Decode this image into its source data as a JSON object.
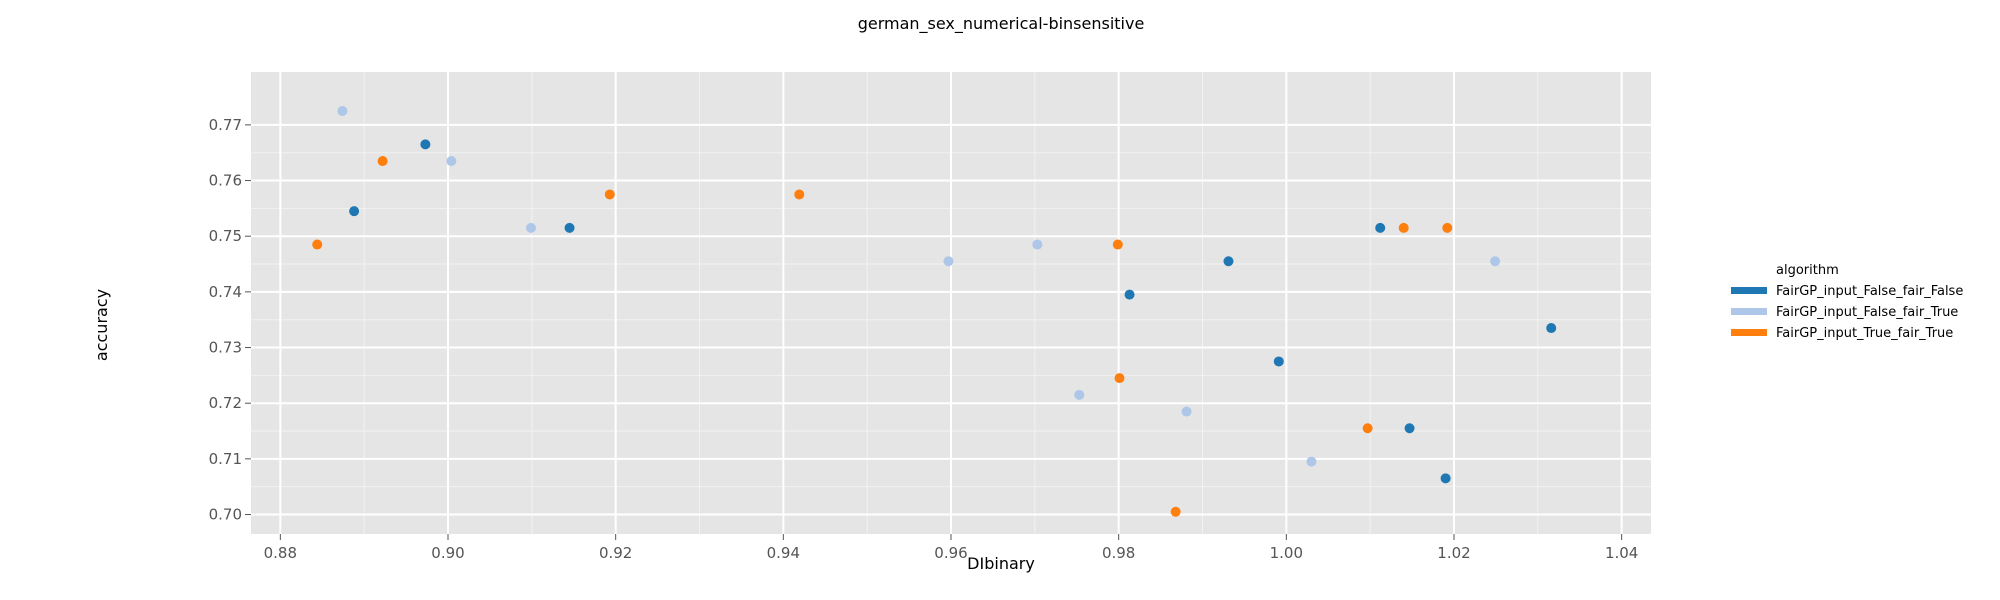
{
  "chart_data": {
    "type": "scatter",
    "title": "german_sex_numerical-binsensitive",
    "xlabel": "DIbinary",
    "ylabel": "accuracy",
    "xlim": [
      0.8765,
      1.0435
    ],
    "ylim": [
      0.6965,
      0.7795
    ],
    "x_ticks": [
      "0.88",
      "0.90",
      "0.92",
      "0.94",
      "0.96",
      "0.98",
      "1.00",
      "1.02",
      "1.04"
    ],
    "y_ticks": [
      "0.70",
      "0.71",
      "0.72",
      "0.73",
      "0.74",
      "0.75",
      "0.76",
      "0.77"
    ],
    "grid": true,
    "legend": {
      "title": "algorithm",
      "position": "right"
    },
    "series": [
      {
        "name": "FairGP_input_False_fair_False",
        "color": "#1f77b4",
        "points": [
          {
            "x": 0.8888,
            "y": 0.7545
          },
          {
            "x": 0.8973,
            "y": 0.7665
          },
          {
            "x": 0.9145,
            "y": 0.7515
          },
          {
            "x": 0.9813,
            "y": 0.7395
          },
          {
            "x": 0.9931,
            "y": 0.7455
          },
          {
            "x": 0.9991,
            "y": 0.7275
          },
          {
            "x": 1.0112,
            "y": 0.7515
          },
          {
            "x": 1.0147,
            "y": 0.7155
          },
          {
            "x": 1.019,
            "y": 0.7065
          },
          {
            "x": 1.0316,
            "y": 0.7335
          }
        ]
      },
      {
        "name": "FairGP_input_False_fair_True",
        "color": "#aec7e8",
        "points": [
          {
            "x": 0.8874,
            "y": 0.7725
          },
          {
            "x": 0.9004,
            "y": 0.7635
          },
          {
            "x": 0.9099,
            "y": 0.7515
          },
          {
            "x": 0.9597,
            "y": 0.7455
          },
          {
            "x": 0.9703,
            "y": 0.7485
          },
          {
            "x": 0.9753,
            "y": 0.7215
          },
          {
            "x": 0.9881,
            "y": 0.7185
          },
          {
            "x": 1.003,
            "y": 0.7095
          },
          {
            "x": 1.0249,
            "y": 0.7455
          }
        ]
      },
      {
        "name": "FairGP_input_True_fair_True",
        "color": "#ff7f0e",
        "points": [
          {
            "x": 0.8844,
            "y": 0.7485
          },
          {
            "x": 0.8922,
            "y": 0.7635
          },
          {
            "x": 0.9193,
            "y": 0.7575
          },
          {
            "x": 0.9419,
            "y": 0.7575
          },
          {
            "x": 0.9799,
            "y": 0.7485
          },
          {
            "x": 0.9801,
            "y": 0.7245
          },
          {
            "x": 0.9868,
            "y": 0.7005
          },
          {
            "x": 1.0097,
            "y": 0.7155
          },
          {
            "x": 1.014,
            "y": 0.7515
          },
          {
            "x": 1.0192,
            "y": 0.7515
          }
        ]
      }
    ]
  }
}
